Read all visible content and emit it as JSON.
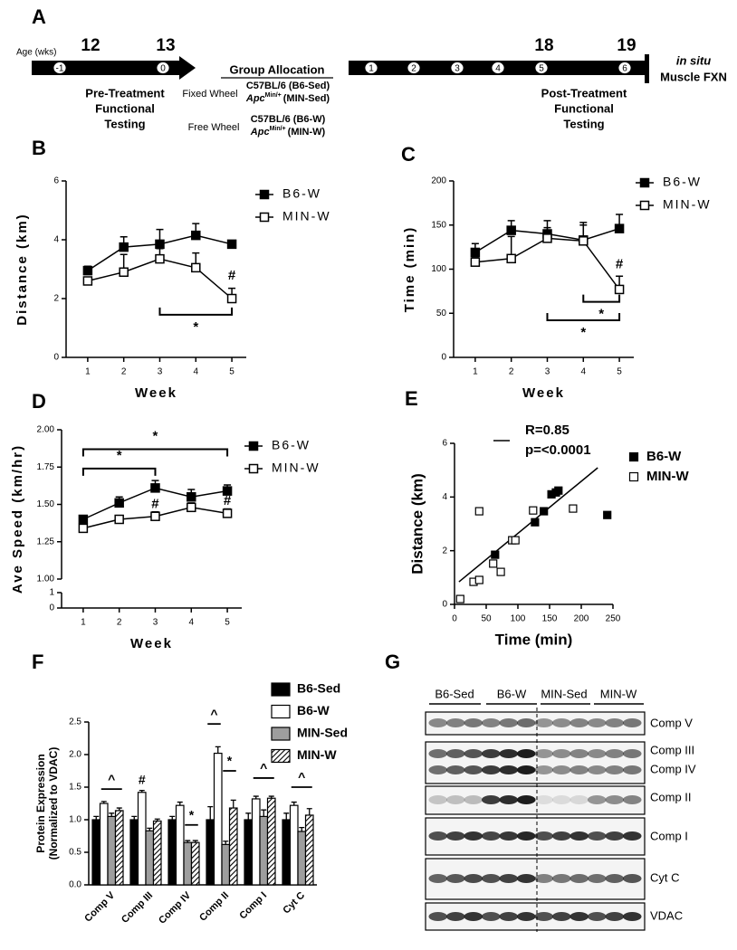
{
  "panel_a": {
    "label": "A",
    "age_label": "Age (wks)",
    "ages": [
      "12",
      "13",
      "18",
      "19"
    ],
    "timepoints": [
      "-1",
      "0",
      "1",
      "2",
      "3",
      "4",
      "5",
      "6"
    ],
    "group_allocation": "Group Allocation",
    "fixed_wheel": "Fixed Wheel",
    "free_wheel": "Free Wheel",
    "fixed_groups": {
      "b6": "C57BL/6 (B6-Sed)",
      "min": {
        "gene": "Apc",
        "allele": "Min/+",
        "group": "(MIN-Sed)"
      }
    },
    "free_groups": {
      "b6": "C57BL/6 (B6-W)",
      "min": {
        "gene": "Apc",
        "allele": "Min/+",
        "group": "(MIN-W)"
      }
    },
    "pre_treatment": [
      "Pre-Treatment",
      "Functional",
      "Testing"
    ],
    "post_treatment": [
      "Post-Treatment",
      "Functional",
      "Testing"
    ],
    "endpoint": {
      "italic": "in situ",
      "text": "Muscle FXN"
    }
  },
  "chart_data": [
    {
      "panel": "B",
      "type": "line",
      "xlabel": "Week",
      "ylabel": "Distance (km)",
      "x": [
        1,
        2,
        3,
        4,
        5
      ],
      "xlim": [
        0.4,
        5.4
      ],
      "xticks": [
        1,
        2,
        3,
        4,
        5
      ],
      "ylim": [
        0,
        6
      ],
      "yticks": [
        0,
        2,
        4,
        6
      ],
      "series": [
        {
          "name": "B6-W",
          "color": "#000000",
          "marker_fill": "#000000",
          "values": [
            2.95,
            3.75,
            3.85,
            4.15,
            3.85
          ],
          "errors": [
            0.15,
            0.35,
            0.5,
            0.4,
            0.1
          ]
        },
        {
          "name": "MIN-W",
          "color": "#000000",
          "marker_fill": "#ffffff",
          "values": [
            2.6,
            2.9,
            3.35,
            3.05,
            2.0
          ],
          "errors": [
            0.12,
            0.6,
            0.35,
            0.5,
            0.35
          ]
        }
      ],
      "annotations": [
        {
          "text": "#",
          "x": 5,
          "y": 2.77
        },
        {
          "text": "*",
          "x": [
            3,
            5
          ],
          "y": 1.45
        }
      ]
    },
    {
      "panel": "C",
      "type": "line",
      "xlabel": "Week",
      "ylabel": "Time (min)",
      "x": [
        1,
        2,
        3,
        4,
        5
      ],
      "xlim": [
        0.4,
        5.4
      ],
      "xticks": [
        1,
        2,
        3,
        4,
        5
      ],
      "ylim": [
        0,
        200
      ],
      "yticks": [
        0,
        50,
        100,
        150,
        200
      ],
      "series": [
        {
          "name": "B6-W",
          "color": "#000000",
          "marker_fill": "#000000",
          "values": [
            119,
            144,
            140,
            133,
            146
          ],
          "errors": [
            10,
            11,
            15,
            20,
            16
          ]
        },
        {
          "name": "MIN-W",
          "color": "#000000",
          "marker_fill": "#ffffff",
          "values": [
            108,
            112,
            135,
            132,
            77
          ],
          "errors": [
            5,
            25,
            12,
            18,
            15
          ]
        }
      ],
      "annotations": [
        {
          "text": "#",
          "x": 5,
          "y": 105
        },
        {
          "text": "*",
          "x": [
            4,
            5
          ],
          "y": 63
        },
        {
          "text": "*",
          "x": [
            3,
            5
          ],
          "y": 42
        }
      ]
    },
    {
      "panel": "D",
      "type": "line",
      "xlabel": "Week",
      "ylabel": "Ave Speed (km/hr)",
      "x": [
        1,
        2,
        3,
        4,
        5
      ],
      "xlim": [
        0.4,
        5.4
      ],
      "xticks": [
        1,
        2,
        3,
        4,
        5
      ],
      "ylim": [
        1,
        2
      ],
      "yticks": [
        {
          "value": 1,
          "label": "1.00"
        },
        {
          "value": 1.25,
          "label": "1.25"
        },
        {
          "value": 1.5,
          "label": "1.50"
        },
        {
          "value": 1.75,
          "label": "1.75"
        },
        {
          "value": 2,
          "label": "2.00"
        }
      ],
      "ylim_lower": [
        0,
        1
      ],
      "yticks_lower": [
        0,
        1
      ],
      "series": [
        {
          "name": "B6-W",
          "color": "#000000",
          "marker_fill": "#000000",
          "values": [
            1.4,
            1.51,
            1.61,
            1.55,
            1.59
          ],
          "errors": [
            0.02,
            0.04,
            0.05,
            0.05,
            0.04
          ]
        },
        {
          "name": "MIN-W",
          "color": "#000000",
          "marker_fill": "#ffffff",
          "values": [
            1.34,
            1.4,
            1.42,
            1.48,
            1.44
          ],
          "errors": [
            0.02,
            0.02,
            0.03,
            0.03,
            0.03
          ]
        }
      ],
      "annotations": [
        {
          "text": "#",
          "x": 3,
          "y": 1.5
        },
        {
          "text": "#",
          "x": 5,
          "y": 1.52
        },
        {
          "text": "*",
          "x": [
            1,
            5
          ],
          "y": 1.87
        },
        {
          "text": "*",
          "x": [
            1,
            3
          ],
          "y": 1.74
        }
      ]
    },
    {
      "panel": "E",
      "type": "scatter",
      "xlabel": "Time (min)",
      "ylabel": "Distance (km)",
      "xlim": [
        0,
        250
      ],
      "xticks": [
        0,
        50,
        100,
        150,
        200,
        250
      ],
      "ylim": [
        0,
        6
      ],
      "yticks": [
        0,
        2,
        4,
        6
      ],
      "series": [
        {
          "name": "B6-W",
          "color": "#000000",
          "marker_fill": "#000000",
          "x": [
            64,
            127,
            141,
            153,
            160,
            164,
            241
          ],
          "values": [
            1.85,
            3.06,
            3.47,
            4.1,
            4.17,
            4.24,
            3.33
          ]
        },
        {
          "name": "MIN-W",
          "color": "#000000",
          "marker_fill": "#ffffff",
          "x": [
            9,
            30,
            39,
            61,
            73,
            39,
            91,
            96,
            124,
            187
          ],
          "values": [
            0.2,
            0.84,
            0.91,
            1.52,
            1.21,
            3.47,
            2.39,
            2.39,
            3.5,
            3.57
          ]
        }
      ],
      "trendline": {
        "x": [
          7,
          226
        ],
        "y": [
          0.84,
          5.09
        ]
      },
      "annotations": [
        "R=0.85",
        "p=<0.0001"
      ]
    },
    {
      "panel": "F",
      "type": "bar",
      "ylabel": [
        "Protein Expression",
        "(Normalized to VDAC)"
      ],
      "categories": [
        "Comp V",
        "Comp III",
        "Comp IV",
        "Comp II",
        "Comp I",
        "Cyt C"
      ],
      "ylim": [
        0,
        2.5
      ],
      "yticks": [
        {
          "value": 0,
          "label": "0.0"
        },
        {
          "value": 0.5,
          "label": "0.5"
        },
        {
          "value": 1,
          "label": "1.0"
        },
        {
          "value": 1.5,
          "label": "1.5"
        },
        {
          "value": 2,
          "label": "2.0"
        },
        {
          "value": 2.5,
          "label": "2.5"
        }
      ],
      "series": [
        {
          "name": "B6-Sed",
          "color": "#000000",
          "hatch": false,
          "values": [
            1,
            1,
            1,
            1,
            1,
            1
          ],
          "errors": [
            0.05,
            0.05,
            0.05,
            0.2,
            0.1,
            0.1
          ]
        },
        {
          "name": "B6-W",
          "color": "#ffffff",
          "hatch": false,
          "values": [
            1.25,
            1.42,
            1.22,
            2.02,
            1.32,
            1.22
          ],
          "errors": [
            0.03,
            0.03,
            0.05,
            0.1,
            0.04,
            0.05
          ]
        },
        {
          "name": "MIN-Sed",
          "color": "#9e9e9e",
          "hatch": false,
          "values": [
            1.05,
            0.83,
            0.65,
            0.62,
            1.05,
            0.82
          ],
          "errors": [
            0.05,
            0.04,
            0.03,
            0.05,
            0.1,
            0.06
          ]
        },
        {
          "name": "MIN-W",
          "color": "#ffffff",
          "hatch": true,
          "values": [
            1.14,
            0.98,
            0.65,
            1.18,
            1.33,
            1.07
          ],
          "errors": [
            0.04,
            0.03,
            0.03,
            0.12,
            0.03,
            0.1
          ]
        }
      ],
      "annotations": [
        {
          "text": "^",
          "category": 0,
          "series": [
            1,
            3
          ],
          "y": 1.47
        },
        {
          "text": "#",
          "category": 1,
          "series": [
            1
          ],
          "y": 1.6
        },
        {
          "text": "*",
          "category": 2,
          "series": [
            2,
            3
          ],
          "y": 0.92
        },
        {
          "text": "^",
          "category": 3,
          "series": [
            0,
            1
          ],
          "y": 2.47
        },
        {
          "text": "*",
          "category": 3,
          "series": [
            2,
            3
          ],
          "y": 1.75
        },
        {
          "text": "^",
          "category": 4,
          "series": [
            1,
            3
          ],
          "y": 1.64
        },
        {
          "text": "^",
          "category": 5,
          "series": [
            1,
            3
          ],
          "y": 1.5
        }
      ]
    }
  ],
  "panel_g": {
    "label": "G",
    "groups": [
      "B6-Sed",
      "B6-W",
      "MIN-Sed",
      "MIN-W"
    ],
    "bands": [
      [
        "Comp V"
      ],
      [
        "Comp III",
        "Comp IV"
      ],
      [
        "Comp II"
      ],
      [
        "Comp I"
      ],
      [
        "Cyt C"
      ],
      [
        "VDAC"
      ]
    ]
  }
}
